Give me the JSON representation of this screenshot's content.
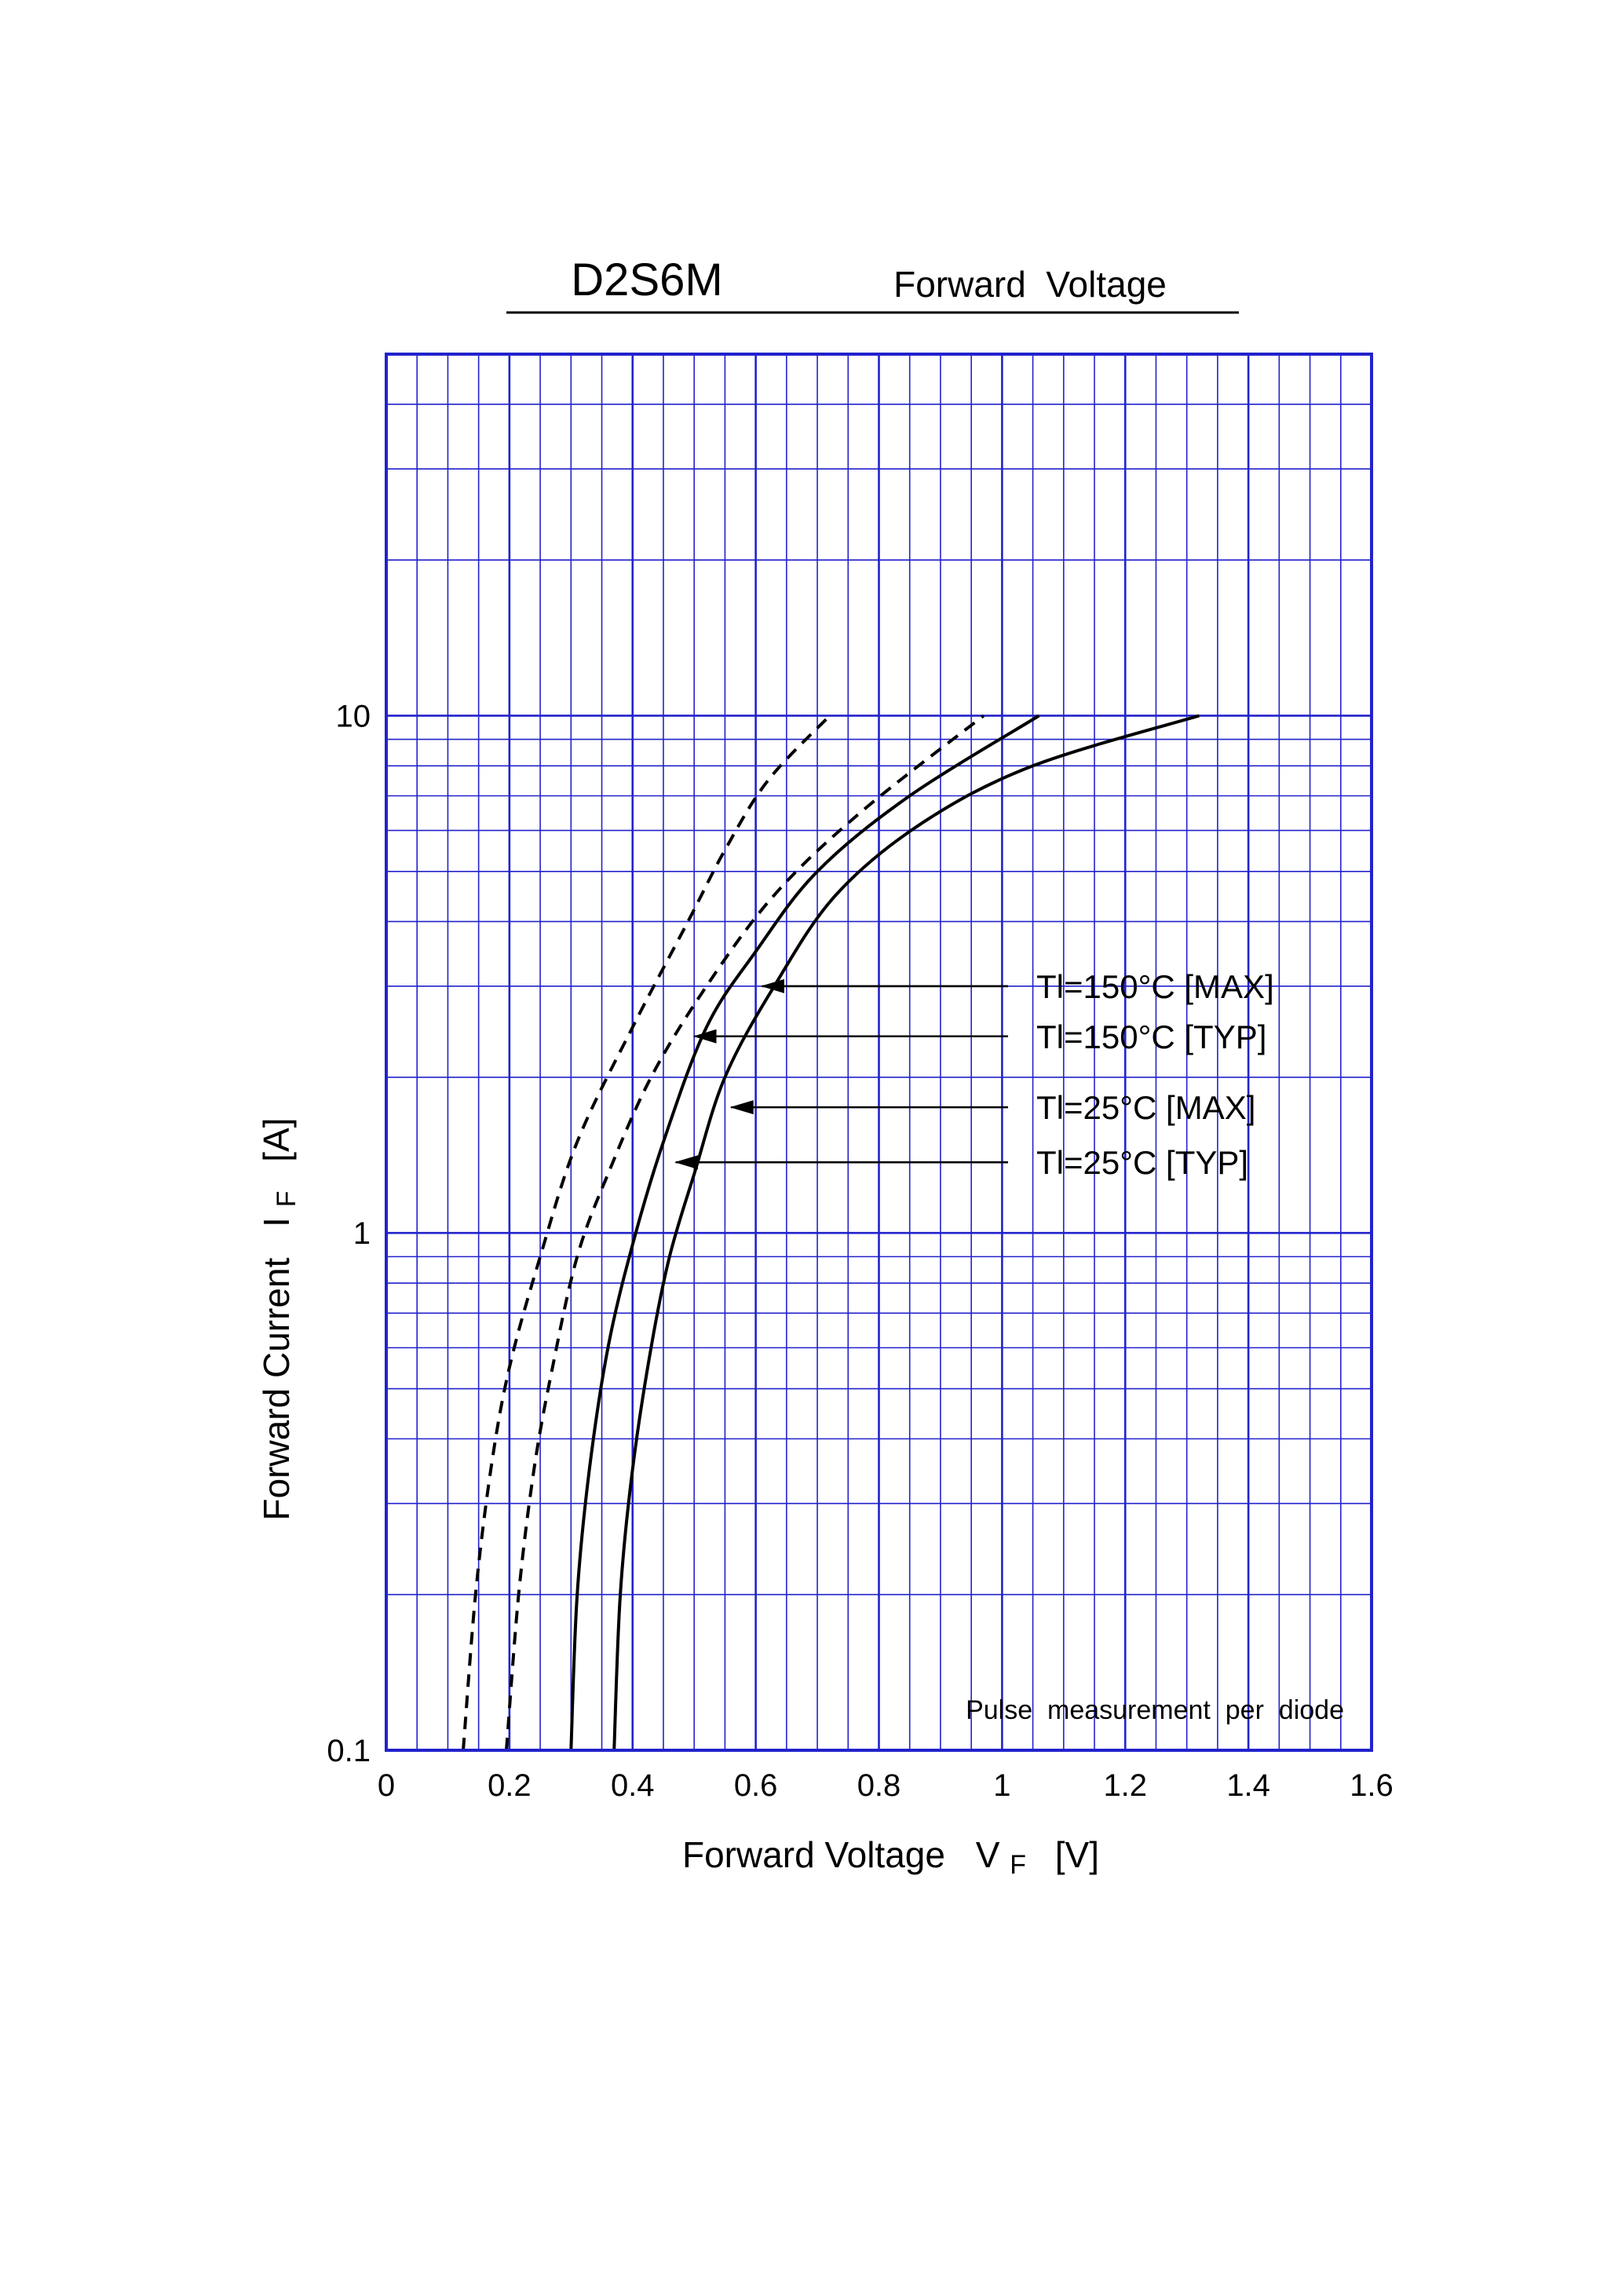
{
  "header": {
    "part_number": "D2S6M",
    "subtitle": "Forward  Voltage"
  },
  "chart_data": {
    "type": "line",
    "x_axis": {
      "label": "Forward Voltage",
      "symbol": "V",
      "symbol_sub": "F",
      "unit": "[V]",
      "range": [
        0,
        1.6
      ],
      "ticks": [
        0,
        0.2,
        0.4,
        0.6,
        0.8,
        1,
        1.2,
        1.4,
        1.6
      ],
      "tick_labels": [
        "0",
        "0.2",
        "0.4",
        "0.6",
        "0.8",
        "1",
        "1.2",
        "1.4",
        "1.6"
      ],
      "minor_step": 0.05,
      "scale": "linear"
    },
    "y_axis": {
      "label": "Forward Current",
      "symbol": "I",
      "symbol_sub": "F",
      "unit": "[A]",
      "range": [
        0.1,
        50
      ],
      "ticks": [
        0.1,
        1,
        10
      ],
      "tick_labels": [
        "0.1",
        "1",
        "10"
      ],
      "scale": "log"
    },
    "grid": true,
    "grid_color": "#2222cc",
    "series": [
      {
        "name": "Tl=150°C [MAX]",
        "style": "dashed",
        "points": [
          [
            0.195,
            0.1
          ],
          [
            0.215,
            0.2
          ],
          [
            0.24,
            0.35
          ],
          [
            0.27,
            0.55
          ],
          [
            0.31,
            0.9
          ],
          [
            0.36,
            1.3
          ],
          [
            0.43,
            2.0
          ],
          [
            0.52,
            3.0
          ],
          [
            0.63,
            4.5
          ],
          [
            0.77,
            6.5
          ],
          [
            0.97,
            10
          ]
        ]
      },
      {
        "name": "Tl=150°C [TYP]",
        "style": "dashed",
        "points": [
          [
            0.125,
            0.1
          ],
          [
            0.145,
            0.2
          ],
          [
            0.17,
            0.35
          ],
          [
            0.2,
            0.55
          ],
          [
            0.25,
            0.9
          ],
          [
            0.31,
            1.5
          ],
          [
            0.4,
            2.5
          ],
          [
            0.49,
            4.0
          ],
          [
            0.55,
            5.5
          ],
          [
            0.62,
            7.5
          ],
          [
            0.72,
            10
          ]
        ]
      },
      {
        "name": "Tl=25°C [MAX]",
        "style": "solid",
        "points": [
          [
            0.37,
            0.1
          ],
          [
            0.38,
            0.2
          ],
          [
            0.4,
            0.35
          ],
          [
            0.43,
            0.6
          ],
          [
            0.46,
            0.9
          ],
          [
            0.5,
            1.3
          ],
          [
            0.55,
            2.0
          ],
          [
            0.63,
            3.0
          ],
          [
            0.73,
            4.5
          ],
          [
            0.87,
            6.2
          ],
          [
            1.05,
            8.0
          ],
          [
            1.32,
            10
          ]
        ]
      },
      {
        "name": "Tl=25°C [TYP]",
        "style": "solid",
        "points": [
          [
            0.3,
            0.1
          ],
          [
            0.31,
            0.2
          ],
          [
            0.33,
            0.35
          ],
          [
            0.36,
            0.6
          ],
          [
            0.4,
            0.95
          ],
          [
            0.45,
            1.5
          ],
          [
            0.52,
            2.5
          ],
          [
            0.6,
            3.5
          ],
          [
            0.7,
            5.0
          ],
          [
            0.85,
            7.0
          ],
          [
            1.06,
            10
          ]
        ]
      }
    ],
    "legend": [
      {
        "label": "Tl=150°C [MAX]",
        "arrow_to": [
          0.61,
          3.0
        ]
      },
      {
        "label": "Tl=150°C [TYP]",
        "arrow_to": [
          0.5,
          2.4
        ]
      },
      {
        "label": "Tl=25°C [MAX]",
        "arrow_to": [
          0.56,
          1.75
        ]
      },
      {
        "label": "Tl=25°C [TYP]",
        "arrow_to": [
          0.47,
          1.37
        ]
      }
    ],
    "annotation": "Pulse  measurement  per  diode"
  }
}
